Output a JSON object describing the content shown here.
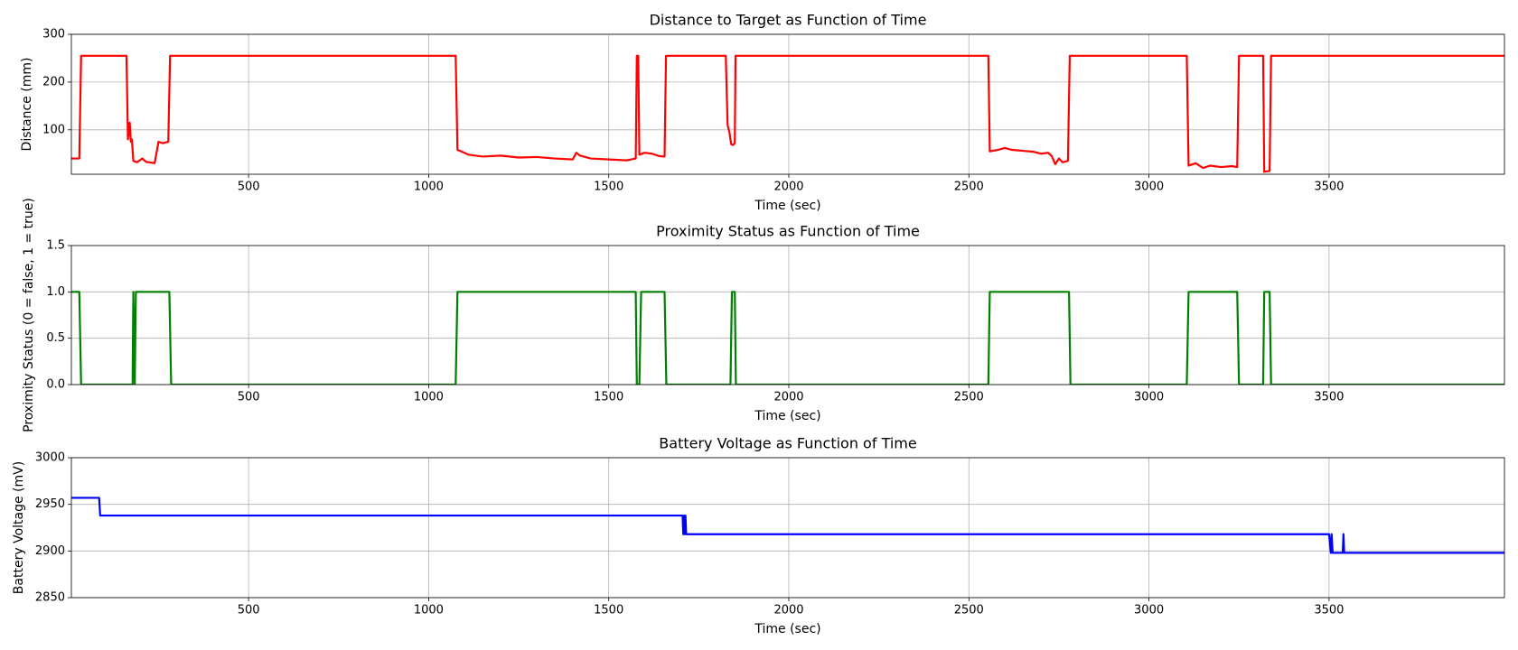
{
  "chart_data": [
    {
      "type": "line",
      "title": "Distance to Target as Function of Time",
      "x_label": "Time (sec)",
      "y_label": "Distance (mm)",
      "color": "#ff0000",
      "grid": true,
      "xlim": [
        8,
        3987
      ],
      "xticks": [
        500,
        1000,
        1500,
        2000,
        2500,
        3000,
        3500
      ],
      "ylim": [
        7,
        300
      ],
      "yticks": [
        100,
        200,
        300
      ],
      "x": [
        8,
        30,
        35,
        161,
        165,
        170,
        173,
        176,
        180,
        190,
        205,
        215,
        225,
        239,
        250,
        262,
        277,
        282,
        1075,
        1080,
        1090,
        1110,
        1150,
        1200,
        1250,
        1300,
        1350,
        1400,
        1410,
        1420,
        1450,
        1500,
        1550,
        1575,
        1578,
        1582,
        1585,
        1600,
        1620,
        1640,
        1655,
        1659,
        1825,
        1830,
        1835,
        1840,
        1845,
        1850,
        1852,
        2554,
        2558,
        2580,
        2600,
        2620,
        2650,
        2680,
        2700,
        2720,
        2730,
        2740,
        2750,
        2760,
        2775,
        2780,
        3105,
        3110,
        3130,
        3150,
        3170,
        3200,
        3230,
        3245,
        3250,
        3317,
        3320,
        3335,
        3339,
        3987
      ],
      "values": [
        40,
        40,
        255,
        255,
        80,
        115,
        75,
        80,
        35,
        32,
        40,
        33,
        32,
        30,
        75,
        72,
        75,
        255,
        255,
        58,
        55,
        48,
        44,
        46,
        42,
        43,
        40,
        38,
        52,
        46,
        40,
        38,
        36,
        40,
        255,
        255,
        48,
        52,
        50,
        45,
        44,
        255,
        255,
        110,
        95,
        70,
        68,
        72,
        255,
        255,
        55,
        58,
        62,
        58,
        56,
        54,
        50,
        52,
        45,
        28,
        40,
        32,
        35,
        255,
        255,
        25,
        30,
        20,
        25,
        22,
        24,
        22,
        255,
        255,
        12,
        14,
        255,
        255
      ]
    },
    {
      "type": "line",
      "title": "Proximity Status as Function of Time",
      "x_label": "Time (sec)",
      "y_label": "Proximity Status (0 = false, 1 = true)",
      "color": "#008000",
      "grid": true,
      "xlim": [
        8,
        3987
      ],
      "xticks": [
        500,
        1000,
        1500,
        2000,
        2500,
        3000,
        3500
      ],
      "ylim": [
        0,
        1.5
      ],
      "yticks": [
        {
          "value": 0,
          "label": "0.0"
        },
        0.5,
        {
          "value": 1,
          "label": "1.0"
        },
        1.5
      ],
      "x": [
        8,
        30,
        35,
        178,
        180,
        184,
        187,
        280,
        285,
        1075,
        1080,
        1575,
        1578,
        1585,
        1590,
        1655,
        1660,
        1838,
        1842,
        1850,
        1853,
        2554,
        2558,
        2778,
        2782,
        3105,
        3110,
        3245,
        3250,
        3317,
        3320,
        3335,
        3339,
        3987
      ],
      "values": [
        1,
        1,
        0,
        0,
        1,
        0,
        1,
        1,
        0,
        0,
        1,
        1,
        0,
        0,
        1,
        1,
        0,
        0,
        1,
        1,
        0,
        0,
        1,
        1,
        0,
        0,
        1,
        1,
        0,
        0,
        1,
        1,
        0,
        0
      ]
    },
    {
      "type": "line",
      "title": "Battery Voltage as Function of Time",
      "x_label": "Time (sec)",
      "y_label": "Battery Voltage (mV)",
      "color": "#0000ff",
      "grid": true,
      "xlim": [
        8,
        3987
      ],
      "xticks": [
        500,
        1000,
        1500,
        2000,
        2500,
        3000,
        3500
      ],
      "ylim": [
        2850,
        3000
      ],
      "yticks": [
        2850,
        2900,
        2950,
        3000
      ],
      "x": [
        8,
        85,
        88,
        1705,
        1707,
        1709,
        1711,
        1713,
        1715,
        3500,
        3505,
        3507,
        3510,
        3538,
        3540,
        3542,
        3987
      ],
      "values": [
        2957,
        2957,
        2938,
        2938,
        2918,
        2938,
        2918,
        2938,
        2918,
        2918,
        2898,
        2918,
        2898,
        2898,
        2918,
        2898,
        2898
      ]
    }
  ]
}
